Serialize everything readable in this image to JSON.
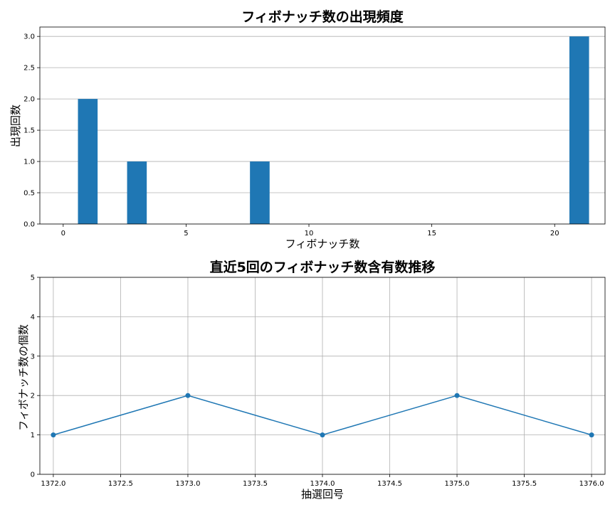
{
  "chart_data": [
    {
      "type": "bar",
      "title": "フィボナッチ数の出現頻度",
      "xlabel": "フィボナッチ数",
      "ylabel": "出現回数",
      "xlim": [
        -0.95,
        22.05
      ],
      "ylim": [
        0,
        3.15
      ],
      "xticks": [
        0,
        5,
        10,
        15,
        20
      ],
      "xtick_labels": [
        "0",
        "5",
        "10",
        "15",
        "20"
      ],
      "yticks": [
        0,
        0.5,
        1,
        1.5,
        2,
        2.5,
        3
      ],
      "ytick_labels": [
        "0.0",
        "0.5",
        "1.0",
        "1.5",
        "2.0",
        "2.5",
        "3.0"
      ],
      "grid": "y",
      "bar_color": "#1f77b4",
      "bar_width": 0.8,
      "x": [
        1,
        3,
        8,
        21
      ],
      "values": [
        2,
        1,
        1,
        3
      ]
    },
    {
      "type": "line",
      "title": "直近5回のフィボナッチ数含有数推移",
      "xlabel": "抽選回号",
      "ylabel": "フィボナッチ数の個数",
      "xlim": [
        1371.9,
        1376.1
      ],
      "ylim": [
        0,
        5
      ],
      "xticks": [
        1372.0,
        1372.5,
        1373.0,
        1373.5,
        1374.0,
        1374.5,
        1375.0,
        1375.5,
        1376.0
      ],
      "xtick_labels": [
        "1372.0",
        "1372.5",
        "1373.0",
        "1373.5",
        "1374.0",
        "1374.5",
        "1375.0",
        "1375.5",
        "1376.0"
      ],
      "yticks": [
        0,
        1,
        2,
        3,
        4,
        5
      ],
      "ytick_labels": [
        "0",
        "1",
        "2",
        "3",
        "4",
        "5"
      ],
      "grid": "both",
      "line_color": "#1f77b4",
      "marker": "o",
      "x": [
        1372,
        1373,
        1374,
        1375,
        1376
      ],
      "values": [
        1,
        2,
        1,
        2,
        1
      ]
    }
  ]
}
